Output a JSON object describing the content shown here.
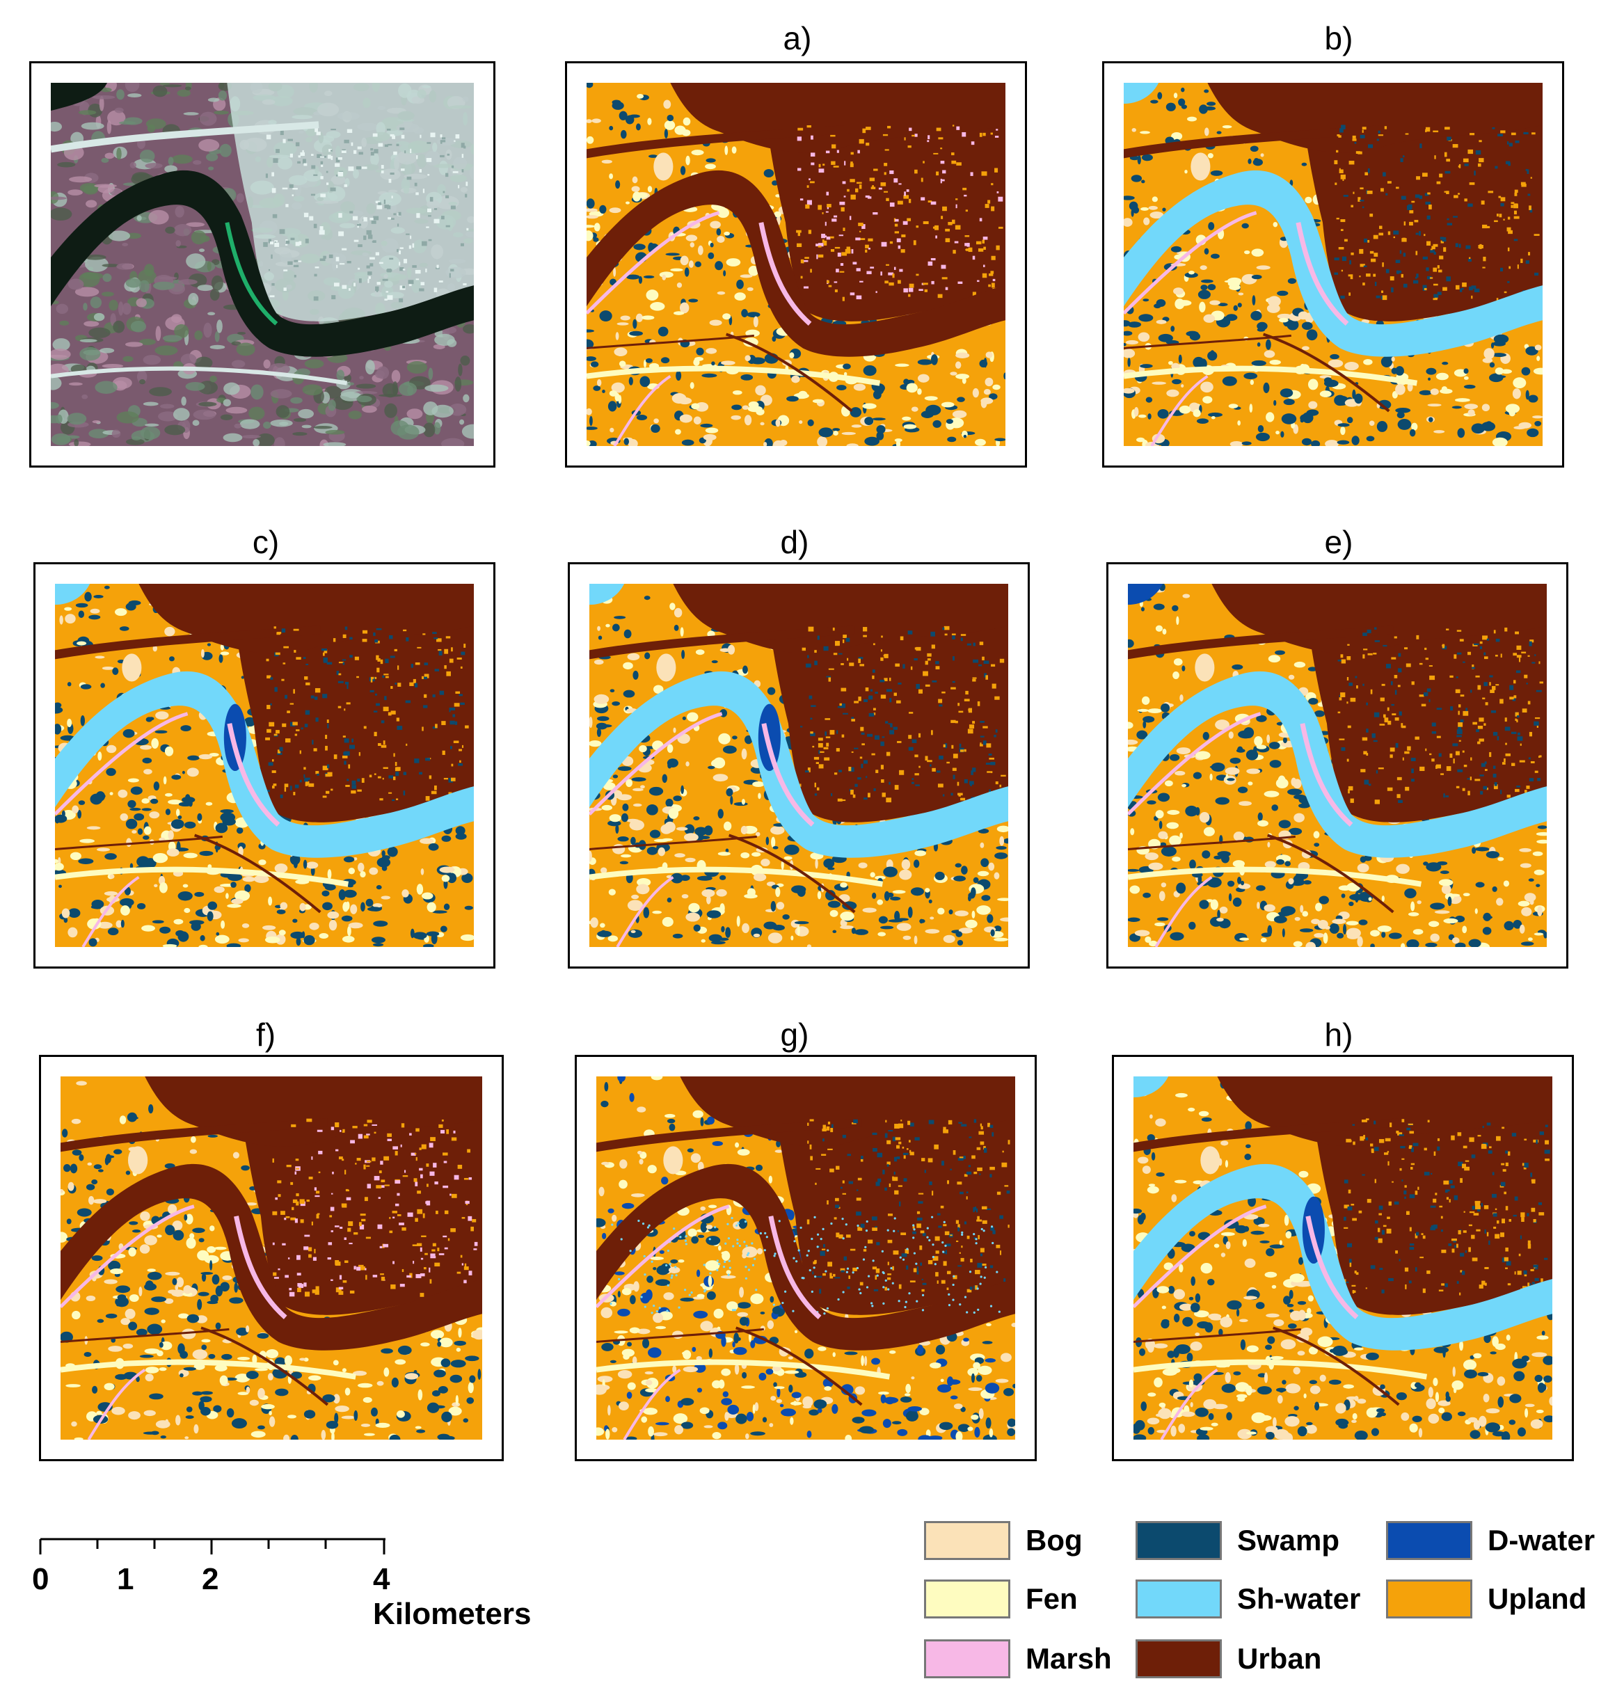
{
  "panels": [
    {
      "id": "img",
      "label": "",
      "kind": "satellite"
    },
    {
      "id": "a",
      "label": "a)",
      "kind": "classified",
      "variant": 0
    },
    {
      "id": "b",
      "label": "b)",
      "kind": "classified",
      "variant": 1
    },
    {
      "id": "c",
      "label": "c)",
      "kind": "classified",
      "variant": 2
    },
    {
      "id": "d",
      "label": "d)",
      "kind": "classified",
      "variant": 3
    },
    {
      "id": "e",
      "label": "e)",
      "kind": "classified",
      "variant": 4
    },
    {
      "id": "f",
      "label": "f)",
      "kind": "classified",
      "variant": 5
    },
    {
      "id": "g",
      "label": "g)",
      "kind": "classified",
      "variant": 6
    },
    {
      "id": "h",
      "label": "h)",
      "kind": "classified",
      "variant": 7
    }
  ],
  "scale": {
    "ticks": [
      "0",
      "1",
      "2",
      "4 Kilometers"
    ]
  },
  "legend": {
    "items": [
      {
        "label": "Bog",
        "color": "#FBE2B8"
      },
      {
        "label": "Fen",
        "color": "#FEFCC0"
      },
      {
        "label": "Marsh",
        "color": "#F7B8E6"
      },
      {
        "label": "Swamp",
        "color": "#0C4A6E"
      },
      {
        "label": "Sh-water",
        "color": "#72D8FA"
      },
      {
        "label": "Urban",
        "color": "#6E1F08"
      },
      {
        "label": "D-water",
        "color": "#0B4CB0"
      },
      {
        "label": "Upland",
        "color": "#F5A20A"
      }
    ]
  }
}
